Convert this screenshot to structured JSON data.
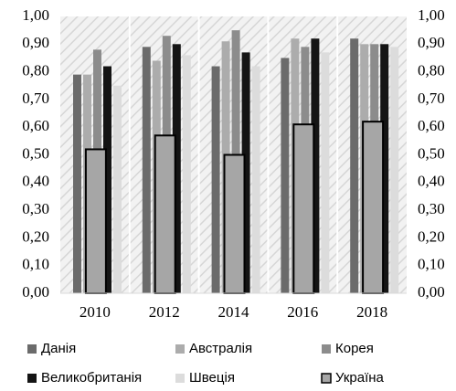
{
  "chart_data": {
    "type": "bar",
    "categories": [
      "2010",
      "2012",
      "2014",
      "2016",
      "2018"
    ],
    "series": [
      {
        "name": "Данія",
        "color": "#6b6b6b",
        "values": [
          0.79,
          0.89,
          0.82,
          0.85,
          0.92
        ]
      },
      {
        "name": "Австралія",
        "color": "#acacac",
        "values": [
          0.79,
          0.84,
          0.91,
          0.92,
          0.9
        ]
      },
      {
        "name": "Корея",
        "color": "#8c8c8c",
        "values": [
          0.88,
          0.93,
          0.95,
          0.89,
          0.9
        ]
      },
      {
        "name": "Великобританія",
        "color": "#141414",
        "values": [
          0.82,
          0.9,
          0.87,
          0.92,
          0.9
        ]
      },
      {
        "name": "Швеція",
        "color": "#dcdcdc",
        "values": [
          0.75,
          0.86,
          0.82,
          0.87,
          0.89
        ]
      },
      {
        "name": "Україна",
        "color": "#a6a6a6",
        "axis": "y2",
        "values": [
          0.52,
          0.57,
          0.5,
          0.61,
          0.62
        ]
      }
    ],
    "ylim": [
      0,
      1
    ],
    "yticks": [
      {
        "value": 0,
        "label": "0,00"
      },
      {
        "value": 0.1,
        "label": "0,10"
      },
      {
        "value": 0.2,
        "label": "0,20"
      },
      {
        "value": 0.3,
        "label": "0,30"
      },
      {
        "value": 0.4,
        "label": "0,40"
      },
      {
        "value": 0.5,
        "label": "0,50"
      },
      {
        "value": 0.6,
        "label": "0,60"
      },
      {
        "value": 0.7,
        "label": "0,70"
      },
      {
        "value": 0.8,
        "label": "0,80"
      },
      {
        "value": 0.9,
        "label": "0,90"
      },
      {
        "value": 1,
        "label": "1,00"
      }
    ],
    "y2lim": [
      0,
      1
    ],
    "y2ticks": [
      {
        "value": 0,
        "label": "0,00"
      },
      {
        "value": 0.1,
        "label": "0,10"
      },
      {
        "value": 0.2,
        "label": "0,20"
      },
      {
        "value": 0.3,
        "label": "0,30"
      },
      {
        "value": 0.4,
        "label": "0,40"
      },
      {
        "value": 0.5,
        "label": "0,50"
      },
      {
        "value": 0.6,
        "label": "0,60"
      },
      {
        "value": 0.7,
        "label": "0,70"
      },
      {
        "value": 0.8,
        "label": "0,80"
      },
      {
        "value": 0.9,
        "label": "0,90"
      },
      {
        "value": 1,
        "label": "1,00"
      }
    ],
    "legend": "bottom"
  }
}
